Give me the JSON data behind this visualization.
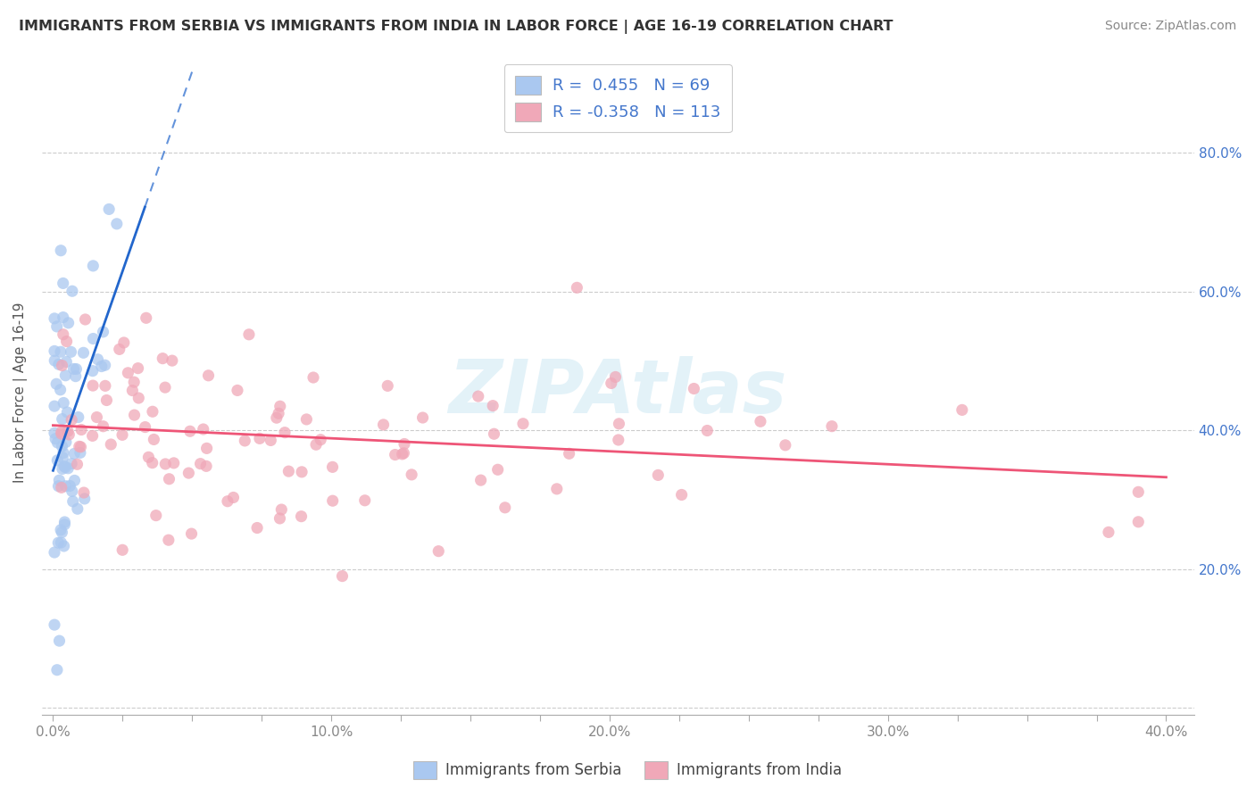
{
  "title": "IMMIGRANTS FROM SERBIA VS IMMIGRANTS FROM INDIA IN LABOR FORCE | AGE 16-19 CORRELATION CHART",
  "source": "Source: ZipAtlas.com",
  "ylabel": "In Labor Force | Age 16-19",
  "serbia_color": "#aac8f0",
  "india_color": "#f0a8b8",
  "serbia_line_color": "#2266cc",
  "india_line_color": "#ee5577",
  "serbia_R": 0.455,
  "serbia_N": 69,
  "india_R": -0.358,
  "india_N": 113,
  "watermark": "ZIPAtlas",
  "right_ytick_color": "#4477cc",
  "tick_color": "#888888"
}
